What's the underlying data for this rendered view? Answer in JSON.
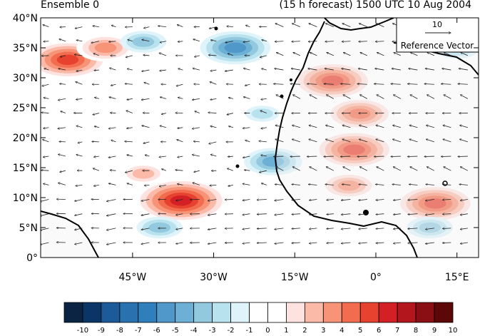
{
  "header": {
    "left_title": "Ensemble 0",
    "right_title": "(15 h forecast) 1500 UTC 10 Aug 2004"
  },
  "axes": {
    "y_ticks": [
      {
        "value": 40,
        "label": "40°N"
      },
      {
        "value": 35,
        "label": "35°N"
      },
      {
        "value": 30,
        "label": "30°N"
      },
      {
        "value": 25,
        "label": "25°N"
      },
      {
        "value": 20,
        "label": "20°N"
      },
      {
        "value": 15,
        "label": "15°N"
      },
      {
        "value": 10,
        "label": "10°N"
      },
      {
        "value": 5,
        "label": "5°N"
      },
      {
        "value": 0,
        "label": "0°"
      }
    ],
    "x_ticks": [
      {
        "value": -45,
        "label": "45°W"
      },
      {
        "value": -30,
        "label": "30°W"
      },
      {
        "value": -15,
        "label": "15°W"
      },
      {
        "value": 0,
        "label": "0°"
      },
      {
        "value": 15,
        "label": "15°E"
      }
    ],
    "lon_range": [
      -62,
      19
    ],
    "lat_range": [
      0,
      40
    ]
  },
  "reference_vector": {
    "magnitude": "10",
    "label": "Reference Vector"
  },
  "colorbar": {
    "labels": [
      "-10",
      "-9",
      "-8",
      "-7",
      "-6",
      "-5",
      "-4",
      "-3",
      "-2",
      "-1",
      "0",
      "1",
      "2",
      "3",
      "4",
      "5",
      "6",
      "7",
      "8",
      "9",
      "10"
    ],
    "colors": [
      "#0c2444",
      "#0b3467",
      "#1d5a9a",
      "#2a71b0",
      "#2f7fbd",
      "#4f98c9",
      "#6db0d6",
      "#93c9df",
      "#b8e2ee",
      "#def3fa",
      "#ffffff",
      "#ffffff",
      "#fde2df",
      "#fbb9a8",
      "#f79377",
      "#f26d4f",
      "#e7412f",
      "#d32024",
      "#b3161c",
      "#8a0f15",
      "#5c0708"
    ]
  },
  "chart_data": {
    "type": "heatmap",
    "title": "(15 h forecast) 1500 UTC 10 Aug 2004",
    "subtitle": "Ensemble 0",
    "x_range": [
      -62,
      19
    ],
    "y_range": [
      0,
      40
    ],
    "color_range": [
      -10,
      10
    ],
    "anomalies": [
      {
        "lon": -57,
        "lat": 33,
        "value": 6
      },
      {
        "lon": -50,
        "lat": 35,
        "value": 4
      },
      {
        "lon": -36,
        "lat": 9.5,
        "value": 7
      },
      {
        "lon": -43,
        "lat": 14,
        "value": 3
      },
      {
        "lon": -26,
        "lat": 35,
        "value": -5
      },
      {
        "lon": -43,
        "lat": 36,
        "value": -3
      },
      {
        "lon": -21,
        "lat": 24,
        "value": -2
      },
      {
        "lon": -19,
        "lat": 16,
        "value": -4
      },
      {
        "lon": -8,
        "lat": 29.5,
        "value": 6
      },
      {
        "lon": -3,
        "lat": 24,
        "value": 5
      },
      {
        "lon": -4,
        "lat": 18,
        "value": 6
      },
      {
        "lon": -5,
        "lat": 12,
        "value": 4
      },
      {
        "lon": 11,
        "lat": 9,
        "value": 6
      },
      {
        "lon": 15,
        "lat": 35,
        "value": -3
      },
      {
        "lon": -40,
        "lat": 5,
        "value": -3
      },
      {
        "lon": 10,
        "lat": 5,
        "value": -3
      }
    ]
  }
}
